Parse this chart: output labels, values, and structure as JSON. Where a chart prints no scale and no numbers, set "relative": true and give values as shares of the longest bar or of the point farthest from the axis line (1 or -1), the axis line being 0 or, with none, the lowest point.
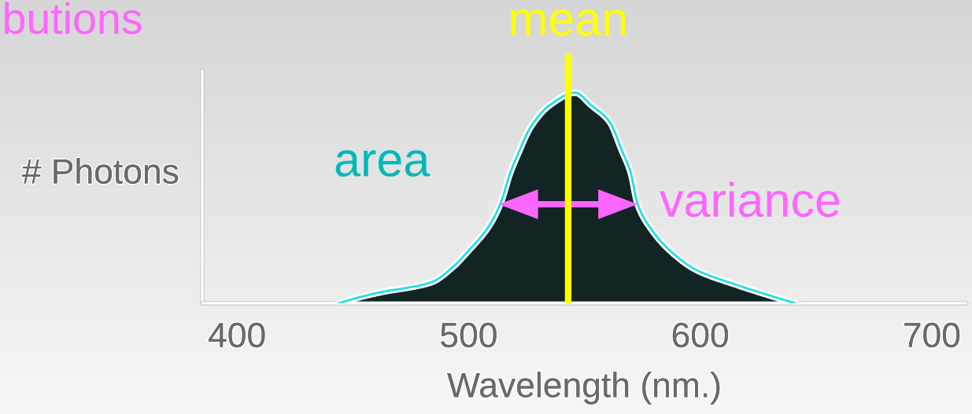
{
  "chart_data": {
    "type": "area",
    "title": "butions",
    "xlabel": "Wavelength (nm.)",
    "ylabel": "# Photons",
    "relative": true,
    "x": [
      444,
      450,
      461,
      484,
      493,
      500,
      509,
      514,
      518,
      521,
      527,
      535,
      546,
      553,
      561,
      566,
      570,
      573,
      579,
      587,
      598,
      615,
      632,
      641
    ],
    "values": [
      0,
      0.02,
      0.05,
      0.1,
      0.17,
      0.25,
      0.37,
      0.48,
      0.62,
      0.7,
      0.84,
      0.94,
      1,
      0.94,
      0.86,
      0.73,
      0.62,
      0.47,
      0.35,
      0.25,
      0.16,
      0.09,
      0.03,
      0
    ],
    "color": "#122424",
    "xlim": [
      385,
      715
    ],
    "xticks": [
      400,
      500,
      600,
      700
    ],
    "tick_labels": "x",
    "grid": false,
    "legend": false,
    "ref_lines": [
      {
        "axis": "x",
        "value": 543,
        "label": "mean",
        "color": "#ffff00"
      }
    ],
    "annotations": [
      "area",
      {
        "text": "variance",
        "x": 573,
        "y": 0.47
      }
    ]
  }
}
